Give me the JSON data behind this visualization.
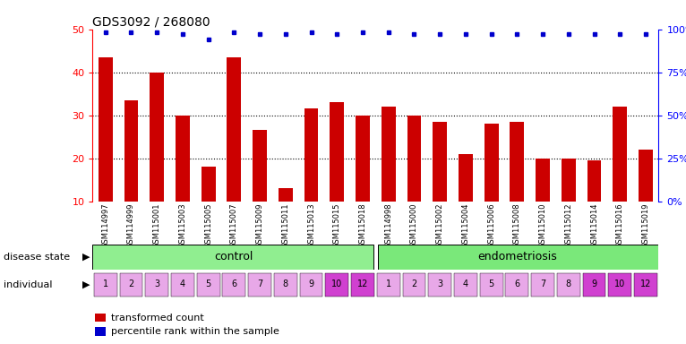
{
  "title": "GDS3092 / 268080",
  "samples": [
    "GSM114997",
    "GSM114999",
    "GSM115001",
    "GSM115003",
    "GSM115005",
    "GSM115007",
    "GSM115009",
    "GSM115011",
    "GSM115013",
    "GSM115015",
    "GSM115018",
    "GSM114998",
    "GSM115000",
    "GSM115002",
    "GSM115004",
    "GSM115006",
    "GSM115008",
    "GSM115010",
    "GSM115012",
    "GSM115014",
    "GSM115016",
    "GSM115019"
  ],
  "bar_values": [
    43.5,
    33.5,
    40.0,
    30.0,
    18.0,
    43.5,
    26.5,
    13.0,
    31.5,
    33.0,
    30.0,
    32.0,
    30.0,
    28.5,
    21.0,
    28.0,
    28.5,
    20.0,
    20.0,
    19.5,
    32.0,
    22.0
  ],
  "percentile_values_pct": [
    98,
    98,
    98,
    97,
    94,
    98,
    97,
    97,
    98,
    97,
    98,
    98,
    97,
    97,
    97,
    97,
    97,
    97,
    97,
    97,
    97,
    97
  ],
  "disease_state": [
    "control",
    "control",
    "control",
    "control",
    "control",
    "control",
    "control",
    "control",
    "control",
    "control",
    "control",
    "endometriosis",
    "endometriosis",
    "endometriosis",
    "endometriosis",
    "endometriosis",
    "endometriosis",
    "endometriosis",
    "endometriosis",
    "endometriosis",
    "endometriosis",
    "endometriosis"
  ],
  "individual": [
    "1",
    "2",
    "3",
    "4",
    "5",
    "6",
    "7",
    "8",
    "9",
    "10",
    "12",
    "1",
    "2",
    "3",
    "4",
    "5",
    "6",
    "7",
    "8",
    "9",
    "10",
    "12"
  ],
  "bar_color": "#cc0000",
  "dot_color": "#0000cc",
  "ylim_left": [
    10,
    50
  ],
  "ylim_right": [
    0,
    100
  ],
  "yticks_left": [
    10,
    20,
    30,
    40,
    50
  ],
  "yticks_right": [
    0,
    25,
    50,
    75,
    100
  ],
  "ytick_labels_right": [
    "0%",
    "25%",
    "50%",
    "75%",
    "100%"
  ],
  "control_color": "#90ee90",
  "endometriosis_color": "#7ae87a",
  "ind_color_light": "#e8a8e8",
  "ind_color_dark": "#d040d0",
  "individual_colors_control": [
    "light",
    "light",
    "light",
    "light",
    "light",
    "light",
    "light",
    "light",
    "light",
    "dark",
    "dark"
  ],
  "individual_colors_endo": [
    "light",
    "light",
    "light",
    "light",
    "light",
    "light",
    "light",
    "light",
    "dark",
    "dark",
    "dark"
  ],
  "label_disease": "disease state",
  "label_individual": "individual",
  "legend_bar_label": "transformed count",
  "legend_dot_label": "percentile rank within the sample",
  "n_control": 11,
  "n_endometriosis": 11
}
